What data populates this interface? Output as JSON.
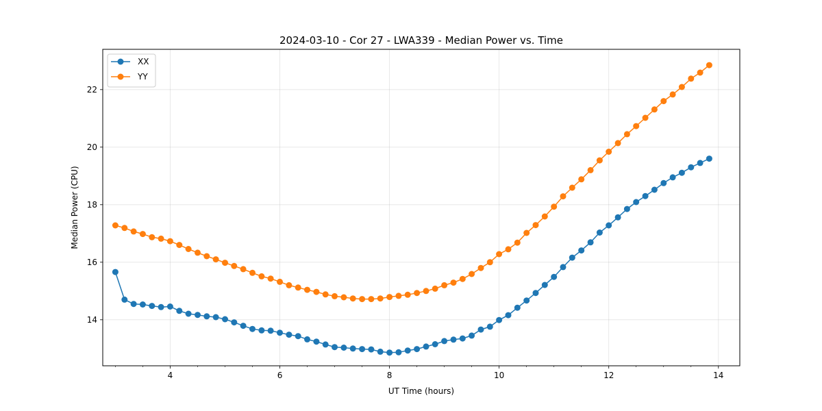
{
  "chart_data": {
    "type": "line",
    "title": "2024-03-10 - Cor 27 - LWA339 - Median Power vs. Time",
    "xlabel": "UT Time (hours)",
    "ylabel": "Median Power (CPU)",
    "xlim": [
      2.77,
      14.39
    ],
    "ylim": [
      12.4,
      23.4
    ],
    "xticks": [
      4,
      6,
      8,
      10,
      12,
      14
    ],
    "yticks": [
      14,
      16,
      18,
      20,
      22
    ],
    "xminor_step": 0.5,
    "grid": true,
    "legend": "upper-left",
    "series": [
      {
        "name": "XX",
        "color": "#1f77b4",
        "marker": "circle",
        "x": [
          3.0,
          3.167,
          3.333,
          3.5,
          3.667,
          3.833,
          4.0,
          4.167,
          4.333,
          4.5,
          4.667,
          4.833,
          5.0,
          5.167,
          5.333,
          5.5,
          5.667,
          5.833,
          6.0,
          6.167,
          6.333,
          6.5,
          6.667,
          6.833,
          7.0,
          7.167,
          7.333,
          7.5,
          7.667,
          7.833,
          8.0,
          8.167,
          8.333,
          8.5,
          8.667,
          8.833,
          9.0,
          9.167,
          9.333,
          9.5,
          9.667,
          9.833,
          10.0,
          10.167,
          10.333,
          10.5,
          10.667,
          10.833,
          11.0,
          11.167,
          11.333,
          11.5,
          11.667,
          11.833,
          12.0,
          12.167,
          12.333,
          12.5,
          12.667,
          12.833,
          13.0,
          13.167,
          13.333,
          13.5,
          13.667,
          13.833
        ],
        "values": [
          15.66,
          14.7,
          14.55,
          14.53,
          14.48,
          14.44,
          14.46,
          14.31,
          14.21,
          14.17,
          14.12,
          14.09,
          14.02,
          13.91,
          13.79,
          13.68,
          13.63,
          13.62,
          13.55,
          13.48,
          13.43,
          13.32,
          13.24,
          13.14,
          13.05,
          13.03,
          13.0,
          12.98,
          12.97,
          12.89,
          12.86,
          12.87,
          12.93,
          12.98,
          13.07,
          13.15,
          13.26,
          13.31,
          13.35,
          13.45,
          13.66,
          13.76,
          13.99,
          14.16,
          14.42,
          14.67,
          14.93,
          15.21,
          15.49,
          15.83,
          16.16,
          16.41,
          16.69,
          17.03,
          17.28,
          17.56,
          17.85,
          18.09,
          18.3,
          18.52,
          18.75,
          18.95,
          19.11,
          19.3,
          19.45,
          19.6
        ]
      },
      {
        "name": "YY",
        "color": "#ff7f0e",
        "marker": "circle",
        "x": [
          3.0,
          3.167,
          3.333,
          3.5,
          3.667,
          3.833,
          4.0,
          4.167,
          4.333,
          4.5,
          4.667,
          4.833,
          5.0,
          5.167,
          5.333,
          5.5,
          5.667,
          5.833,
          6.0,
          6.167,
          6.333,
          6.5,
          6.667,
          6.833,
          7.0,
          7.167,
          7.333,
          7.5,
          7.667,
          7.833,
          8.0,
          8.167,
          8.333,
          8.5,
          8.667,
          8.833,
          9.0,
          9.167,
          9.333,
          9.5,
          9.667,
          9.833,
          10.0,
          10.167,
          10.333,
          10.5,
          10.667,
          10.833,
          11.0,
          11.167,
          11.333,
          11.5,
          11.667,
          11.833,
          12.0,
          12.167,
          12.333,
          12.5,
          12.667,
          12.833,
          13.0,
          13.167,
          13.333,
          13.5,
          13.667,
          13.833
        ],
        "values": [
          17.28,
          17.19,
          17.07,
          16.98,
          16.87,
          16.82,
          16.73,
          16.6,
          16.46,
          16.33,
          16.21,
          16.1,
          15.98,
          15.87,
          15.76,
          15.63,
          15.51,
          15.43,
          15.32,
          15.2,
          15.12,
          15.04,
          14.97,
          14.88,
          14.82,
          14.78,
          14.74,
          14.72,
          14.72,
          14.74,
          14.79,
          14.83,
          14.87,
          14.93,
          15.0,
          15.08,
          15.2,
          15.29,
          15.42,
          15.59,
          15.8,
          16.0,
          16.28,
          16.45,
          16.68,
          17.02,
          17.29,
          17.59,
          17.93,
          18.29,
          18.59,
          18.88,
          19.2,
          19.54,
          19.84,
          20.14,
          20.45,
          20.73,
          21.02,
          21.31,
          21.6,
          21.83,
          22.09,
          22.38,
          22.59,
          22.85
        ]
      }
    ]
  }
}
